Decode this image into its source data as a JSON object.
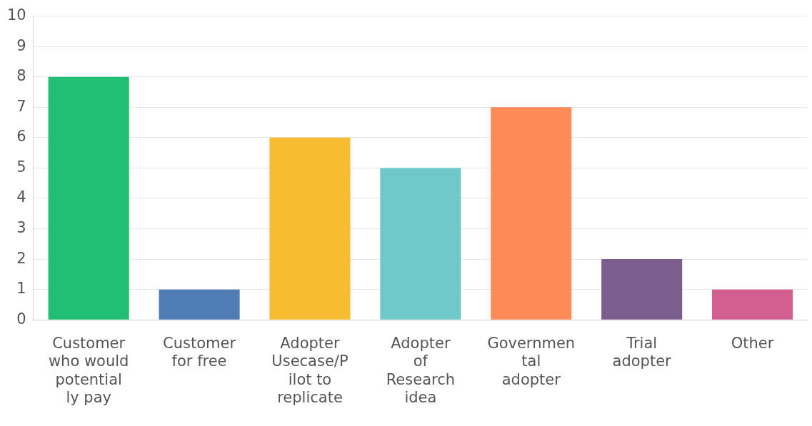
{
  "chart_data": {
    "type": "bar",
    "categories": [
      "Customer who would potentially pay",
      "Customer for free",
      "Adopter Usecase/Pilot to replicate",
      "Adopter of Research idea",
      "Governmental adopter",
      "Trial adopter",
      "Other"
    ],
    "values": [
      8,
      1,
      6,
      5,
      7,
      2,
      1
    ],
    "colors": [
      "#21bf73",
      "#507cb6",
      "#f7bc2f",
      "#6fc9ca",
      "#fe8b57",
      "#7c5e8e",
      "#d25f90"
    ],
    "ylim": [
      0,
      10
    ],
    "yticks": [
      0,
      1,
      2,
      3,
      4,
      5,
      6,
      7,
      8,
      9,
      10
    ],
    "grid": "y",
    "legend": false
  }
}
